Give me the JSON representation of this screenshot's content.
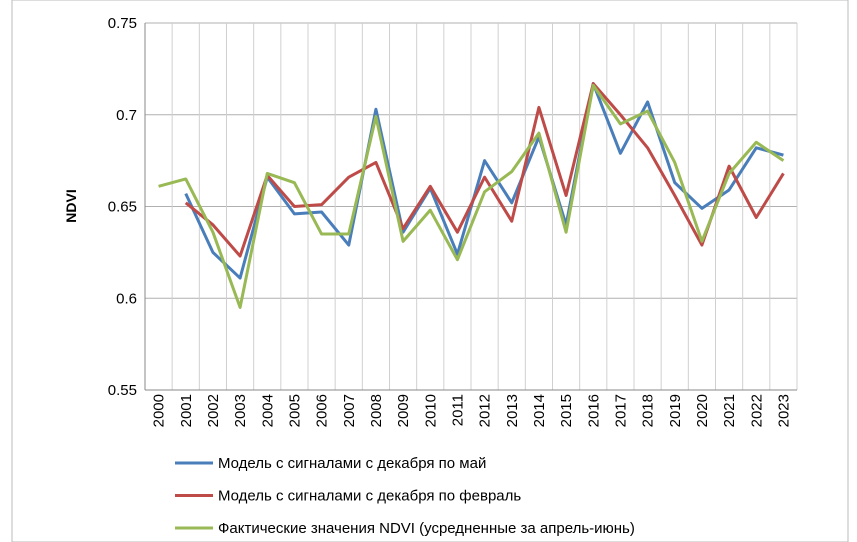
{
  "chart_data": {
    "type": "line",
    "ylabel": "NDVI",
    "categories": [
      "2000",
      "2001",
      "2002",
      "2003",
      "2004",
      "2005",
      "2006",
      "2007",
      "2008",
      "2009",
      "2010",
      "2011",
      "2012",
      "2013",
      "2014",
      "2015",
      "2016",
      "2017",
      "2018",
      "2019",
      "2020",
      "2021",
      "2022",
      "2023"
    ],
    "series": [
      {
        "name": "Модель с сигналами с декабря по май",
        "color": "#4a7ebb",
        "values": [
          null,
          0.657,
          0.625,
          0.611,
          0.666,
          0.646,
          0.647,
          0.629,
          0.703,
          0.636,
          0.66,
          0.624,
          0.675,
          0.652,
          0.688,
          0.64,
          0.717,
          0.679,
          0.707,
          0.663,
          0.649,
          0.659,
          0.682,
          0.678
        ]
      },
      {
        "name": "Модель с сигналами с декабря по февраль",
        "color": "#be4b48",
        "values": [
          null,
          0.652,
          0.64,
          0.623,
          0.667,
          0.65,
          0.651,
          0.666,
          0.674,
          0.638,
          0.661,
          0.636,
          0.666,
          0.642,
          0.704,
          0.656,
          0.717,
          0.7,
          0.682,
          0.656,
          0.629,
          0.672,
          0.644,
          0.668
        ]
      },
      {
        "name": "Фактические значения NDVI (усредненные за апрель-июнь)",
        "color": "#98b954",
        "values": [
          0.661,
          0.665,
          0.636,
          0.595,
          0.668,
          0.663,
          0.635,
          0.635,
          0.699,
          0.631,
          0.648,
          0.621,
          0.658,
          0.669,
          0.69,
          0.636,
          0.716,
          0.695,
          0.702,
          0.674,
          0.631,
          0.668,
          0.685,
          0.675
        ]
      }
    ],
    "ylim": [
      0.55,
      0.75
    ],
    "yticks": [
      0.55,
      0.6,
      0.65,
      0.7,
      0.75
    ],
    "grid": true
  }
}
